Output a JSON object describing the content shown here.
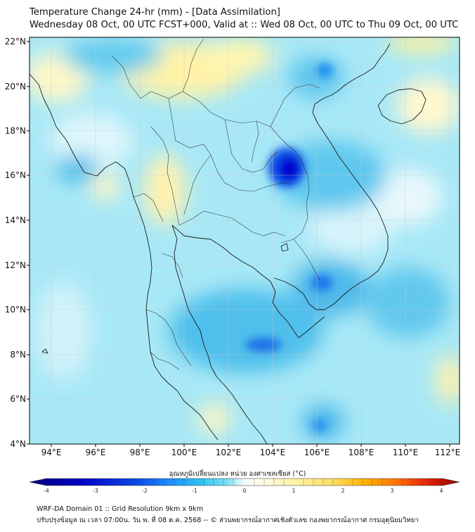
{
  "header": {
    "title": "Temperature Change 24-hr (mm) - [Data Assimilation]",
    "subtitle": "Wednesday 08 Oct, 00 UTC FCST+000, Valid at :: Wed 08 Oct, 00 UTC to Thu 09 Oct, 00 UTC"
  },
  "map": {
    "lat_labels": [
      "22°N",
      "20°N",
      "18°N",
      "16°N",
      "14°N",
      "12°N",
      "10°N",
      "8°N",
      "6°N",
      "4°N"
    ],
    "lon_labels": [
      "94°E",
      "96°E",
      "98°E",
      "100°E",
      "102°E",
      "104°E",
      "106°E",
      "108°E",
      "110°E",
      "112°E"
    ]
  },
  "colorbar": {
    "title": "อุณหภูมิเปลี่ยนแปลง หน่วย องศาเซลเซียส (°C)",
    "ticks": [
      "-4",
      "-3",
      "-2",
      "-1",
      "0",
      "1",
      "2",
      "3",
      "4"
    ],
    "colors": [
      "#00007a",
      "#0000c8",
      "#0a4be6",
      "#1e90ff",
      "#2ec4f0",
      "#7ee0f5",
      "#c8f0fa",
      "#f5fbfd",
      "#fffbe0",
      "#fff2a0",
      "#ffe066",
      "#ffb300",
      "#ff6a00",
      "#e0200a",
      "#8b0000"
    ]
  },
  "footer": {
    "line1": "WRF-DA Domain 01 :: Grid Resolution 9km x 9km",
    "line2": "ปรับปรุงข้อมูล ณ เวลา 07:00น. วัน พ. ที่ 08 ต.ค. 2568 -- © ส่วนพยากรณ์อากาศเชิงตัวเลข กองพยากรณ์อากาศ กรมอุตุนิยมวิทยา"
  }
}
